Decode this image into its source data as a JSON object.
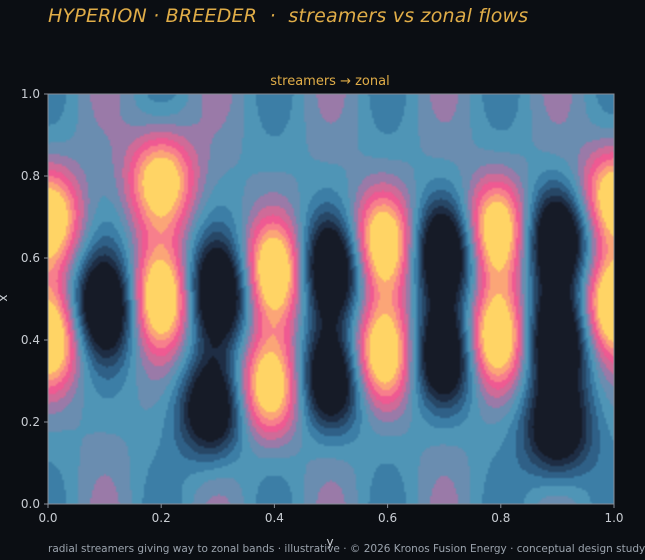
{
  "suptitle": "HYPERION · BREEDER  ·  streamers vs zonal flows",
  "footer": "radial streamers giving way to zonal bands · illustrative · © 2026 Kronos Fusion Energy · conceptual design study",
  "chart_data": {
    "type": "heatmap",
    "title": "streamers → zonal",
    "xlabel": "y",
    "ylabel": "x",
    "xlim": [
      0,
      1
    ],
    "ylim": [
      0,
      1
    ],
    "xticks": [
      "0.0",
      "0.2",
      "0.4",
      "0.6",
      "0.8",
      "1.0"
    ],
    "yticks": [
      "0.0",
      "0.2",
      "0.4",
      "0.6",
      "0.8",
      "1.0"
    ],
    "grid": false,
    "colormap": [
      "#161b27",
      "#1e2d44",
      "#274766",
      "#2f6087",
      "#3c7ea6",
      "#4f95b6",
      "#6a8db0",
      "#9a7aa8",
      "#cf6b98",
      "#ef5a92",
      "#f77f8c",
      "#fba577",
      "#ffd465"
    ],
    "dark_blobs": [
      {
        "x": 0.1,
        "y": 0.48
      },
      {
        "x": 0.3,
        "y": 0.52
      },
      {
        "x": 0.5,
        "y": 0.58
      },
      {
        "x": 0.5,
        "y": 0.3
      },
      {
        "x": 0.7,
        "y": 0.62
      },
      {
        "x": 0.7,
        "y": 0.36
      },
      {
        "x": 0.9,
        "y": 0.65
      },
      {
        "x": 0.9,
        "y": 0.4
      },
      {
        "x": 0.29,
        "y": 0.23
      },
      {
        "x": 0.9,
        "y": 0.18
      }
    ],
    "bright_blobs": [
      {
        "x": 0.0,
        "y": 0.7
      },
      {
        "x": 0.0,
        "y": 0.4
      },
      {
        "x": 0.2,
        "y": 0.5
      },
      {
        "x": 0.2,
        "y": 0.79
      },
      {
        "x": 0.4,
        "y": 0.57
      },
      {
        "x": 0.39,
        "y": 0.28
      },
      {
        "x": 0.59,
        "y": 0.64
      },
      {
        "x": 0.59,
        "y": 0.36
      },
      {
        "x": 0.79,
        "y": 0.67
      },
      {
        "x": 0.79,
        "y": 0.4
      },
      {
        "x": 1.0,
        "y": 0.48
      },
      {
        "x": 1.0,
        "y": 0.75
      }
    ]
  }
}
